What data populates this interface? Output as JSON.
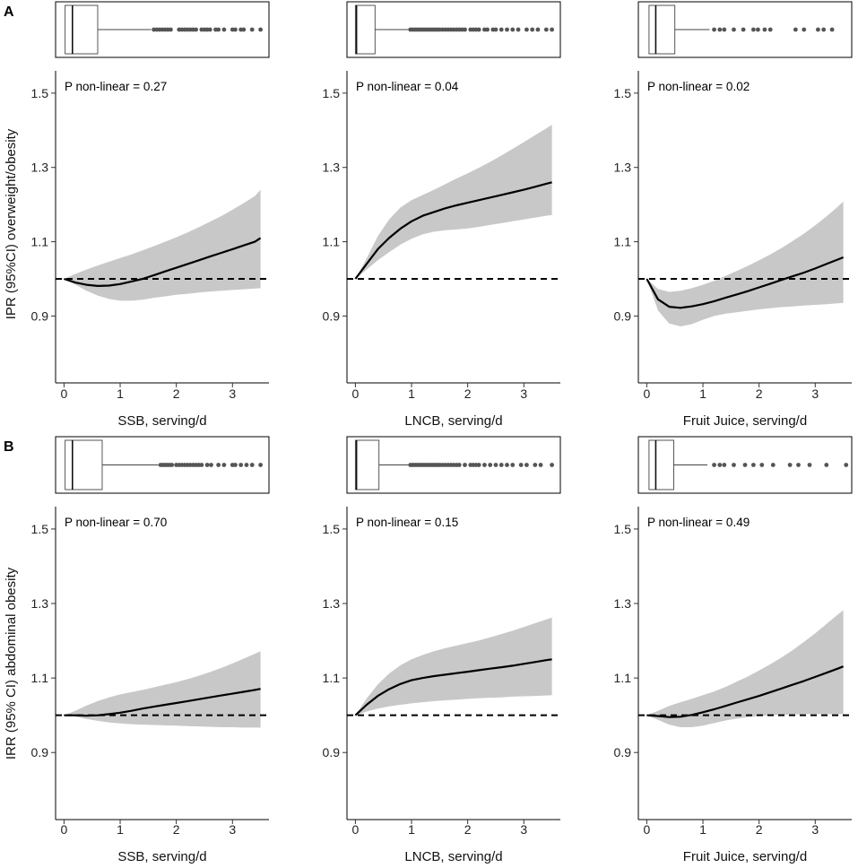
{
  "panels": [
    {
      "letter": "A",
      "ylabel": "IPR (95%CI) overweight/obesity",
      "yticks": [
        0.9,
        1.1,
        1.3,
        1.5
      ],
      "ylim": [
        0.72,
        1.56
      ],
      "subplots": [
        {
          "xlabel": "SSB, serving/d",
          "annotation": "P non-linear = 0.27",
          "box": {
            "whisker_low": 0.0,
            "q1": 0.02,
            "median": 0.15,
            "q3": 0.6,
            "whisker_high": 1.55,
            "outliers": [
              1.6,
              1.65,
              1.7,
              1.75,
              1.8,
              1.85,
              1.9,
              2.05,
              2.1,
              2.15,
              2.2,
              2.25,
              2.3,
              2.35,
              2.45,
              2.5,
              2.55,
              2.6,
              2.7,
              2.75,
              2.85,
              3.0,
              3.05,
              3.15,
              3.2,
              3.35,
              3.5
            ]
          },
          "curve": {
            "x": [
              0,
              0.2,
              0.4,
              0.6,
              0.8,
              1.0,
              1.2,
              1.4,
              1.6,
              1.8,
              2.0,
              2.2,
              2.4,
              2.6,
              2.8,
              3.0,
              3.2,
              3.4,
              3.5
            ],
            "y": [
              1.0,
              0.99,
              0.984,
              0.981,
              0.982,
              0.986,
              0.993,
              1.0,
              1.01,
              1.02,
              1.03,
              1.04,
              1.05,
              1.06,
              1.07,
              1.08,
              1.09,
              1.1,
              1.11
            ],
            "lower": [
              1.0,
              0.985,
              0.968,
              0.955,
              0.946,
              0.941,
              0.941,
              0.944,
              0.949,
              0.953,
              0.957,
              0.96,
              0.963,
              0.966,
              0.968,
              0.97,
              0.972,
              0.974,
              0.975
            ],
            "upper": [
              1.0,
              1.013,
              1.025,
              1.036,
              1.046,
              1.056,
              1.066,
              1.077,
              1.088,
              1.1,
              1.112,
              1.125,
              1.139,
              1.154,
              1.169,
              1.186,
              1.204,
              1.223,
              1.24
            ]
          }
        },
        {
          "xlabel": "LNCB, serving/d",
          "annotation": "P non-linear = 0.04",
          "box": {
            "whisker_low": 0.0,
            "q1": 0.0,
            "median": 0.02,
            "q3": 0.35,
            "whisker_high": 0.95,
            "outliers": [
              0.98,
              1.02,
              1.06,
              1.1,
              1.14,
              1.18,
              1.22,
              1.26,
              1.3,
              1.34,
              1.38,
              1.42,
              1.46,
              1.5,
              1.55,
              1.6,
              1.65,
              1.7,
              1.75,
              1.8,
              1.85,
              1.9,
              1.95,
              2.05,
              2.1,
              2.15,
              2.2,
              2.3,
              2.35,
              2.45,
              2.5,
              2.6,
              2.7,
              2.8,
              2.9,
              3.05,
              3.15,
              3.25,
              3.4,
              3.5
            ]
          },
          "curve": {
            "x": [
              0,
              0.2,
              0.4,
              0.6,
              0.8,
              1.0,
              1.2,
              1.4,
              1.6,
              1.8,
              2.0,
              2.2,
              2.4,
              2.6,
              2.8,
              3.0,
              3.2,
              3.4,
              3.5
            ],
            "y": [
              1.0,
              1.04,
              1.08,
              1.11,
              1.135,
              1.155,
              1.17,
              1.18,
              1.19,
              1.198,
              1.205,
              1.212,
              1.219,
              1.226,
              1.233,
              1.24,
              1.248,
              1.256,
              1.26
            ],
            "lower": [
              1.0,
              1.025,
              1.05,
              1.072,
              1.092,
              1.108,
              1.12,
              1.127,
              1.131,
              1.133,
              1.136,
              1.14,
              1.145,
              1.15,
              1.155,
              1.16,
              1.165,
              1.17,
              1.172
            ],
            "upper": [
              1.0,
              1.055,
              1.115,
              1.16,
              1.192,
              1.212,
              1.226,
              1.24,
              1.255,
              1.27,
              1.284,
              1.299,
              1.315,
              1.332,
              1.35,
              1.368,
              1.387,
              1.405,
              1.415
            ]
          }
        },
        {
          "xlabel": "Fruit Juice, serving/d",
          "annotation": "P non-linear = 0.02",
          "box": {
            "whisker_low": 0.0,
            "q1": 0.04,
            "median": 0.16,
            "q3": 0.5,
            "whisker_high": 1.12,
            "outliers": [
              1.2,
              1.3,
              1.38,
              1.55,
              1.72,
              1.9,
              1.98,
              2.1,
              2.2,
              2.65,
              2.8,
              3.05,
              3.15,
              3.3
            ]
          },
          "curve": {
            "x": [
              0,
              0.2,
              0.4,
              0.6,
              0.8,
              1.0,
              1.2,
              1.4,
              1.6,
              1.8,
              2.0,
              2.2,
              2.4,
              2.6,
              2.8,
              3.0,
              3.2,
              3.4,
              3.5
            ],
            "y": [
              1.0,
              0.945,
              0.925,
              0.922,
              0.926,
              0.932,
              0.94,
              0.949,
              0.958,
              0.967,
              0.977,
              0.987,
              0.997,
              1.007,
              1.017,
              1.028,
              1.04,
              1.052,
              1.058
            ],
            "lower": [
              1.0,
              0.915,
              0.88,
              0.872,
              0.878,
              0.89,
              0.9,
              0.906,
              0.91,
              0.914,
              0.918,
              0.921,
              0.924,
              0.926,
              0.928,
              0.93,
              0.932,
              0.934,
              0.935
            ],
            "upper": [
              1.0,
              0.973,
              0.965,
              0.968,
              0.975,
              0.984,
              0.995,
              1.008,
              1.021,
              1.035,
              1.05,
              1.066,
              1.083,
              1.102,
              1.122,
              1.144,
              1.168,
              1.194,
              1.208
            ]
          }
        }
      ]
    },
    {
      "letter": "B",
      "ylabel": "IRR (95% CI) abdominal obesity",
      "yticks": [
        0.9,
        1.1,
        1.3,
        1.5
      ],
      "ylim": [
        0.72,
        1.56
      ],
      "subplots": [
        {
          "xlabel": "SSB, serving/d",
          "annotation": "P non-linear = 0.70",
          "box": {
            "whisker_low": 0.0,
            "q1": 0.02,
            "median": 0.15,
            "q3": 0.68,
            "whisker_high": 1.68,
            "outliers": [
              1.72,
              1.76,
              1.8,
              1.84,
              1.88,
              1.92,
              2.0,
              2.05,
              2.1,
              2.15,
              2.2,
              2.25,
              2.3,
              2.35,
              2.4,
              2.45,
              2.55,
              2.62,
              2.75,
              2.85,
              3.0,
              3.05,
              3.15,
              3.25,
              3.35,
              3.5
            ]
          },
          "curve": {
            "x": [
              0,
              0.2,
              0.4,
              0.6,
              0.8,
              1.0,
              1.2,
              1.4,
              1.6,
              1.8,
              2.0,
              2.2,
              2.4,
              2.6,
              2.8,
              3.0,
              3.2,
              3.4,
              3.5
            ],
            "y": [
              1.0,
              1.0,
              0.999,
              1.0,
              1.003,
              1.007,
              1.012,
              1.018,
              1.023,
              1.028,
              1.033,
              1.038,
              1.043,
              1.048,
              1.053,
              1.058,
              1.063,
              1.068,
              1.071
            ],
            "lower": [
              1.0,
              0.996,
              0.99,
              0.985,
              0.981,
              0.978,
              0.976,
              0.975,
              0.974,
              0.973,
              0.972,
              0.971,
              0.97,
              0.969,
              0.968,
              0.968,
              0.967,
              0.967,
              0.967
            ],
            "upper": [
              1.0,
              1.012,
              1.026,
              1.038,
              1.048,
              1.056,
              1.062,
              1.068,
              1.075,
              1.082,
              1.089,
              1.097,
              1.106,
              1.116,
              1.127,
              1.139,
              1.152,
              1.165,
              1.172
            ]
          }
        },
        {
          "xlabel": "LNCB, serving/d",
          "annotation": "P non-linear = 0.15",
          "box": {
            "whisker_low": 0.0,
            "q1": 0.0,
            "median": 0.02,
            "q3": 0.42,
            "whisker_high": 0.95,
            "outliers": [
              0.98,
              1.02,
              1.06,
              1.1,
              1.14,
              1.18,
              1.22,
              1.26,
              1.3,
              1.34,
              1.38,
              1.42,
              1.46,
              1.5,
              1.55,
              1.6,
              1.65,
              1.7,
              1.75,
              1.8,
              1.85,
              1.95,
              2.05,
              2.1,
              2.15,
              2.2,
              2.3,
              2.4,
              2.5,
              2.6,
              2.7,
              2.8,
              2.95,
              3.05,
              3.2,
              3.3,
              3.5
            ]
          },
          "curve": {
            "x": [
              0,
              0.2,
              0.4,
              0.6,
              0.8,
              1.0,
              1.2,
              1.4,
              1.6,
              1.8,
              2.0,
              2.2,
              2.4,
              2.6,
              2.8,
              3.0,
              3.2,
              3.4,
              3.5
            ],
            "y": [
              1.0,
              1.028,
              1.052,
              1.07,
              1.084,
              1.094,
              1.1,
              1.105,
              1.109,
              1.113,
              1.117,
              1.121,
              1.125,
              1.129,
              1.133,
              1.138,
              1.143,
              1.148,
              1.15
            ],
            "lower": [
              1.0,
              1.01,
              1.018,
              1.024,
              1.028,
              1.032,
              1.035,
              1.038,
              1.04,
              1.042,
              1.044,
              1.046,
              1.047,
              1.048,
              1.05,
              1.051,
              1.052,
              1.053,
              1.054
            ],
            "upper": [
              1.0,
              1.045,
              1.083,
              1.112,
              1.134,
              1.15,
              1.162,
              1.172,
              1.18,
              1.187,
              1.194,
              1.201,
              1.209,
              1.218,
              1.227,
              1.237,
              1.247,
              1.257,
              1.262
            ]
          }
        },
        {
          "xlabel": "Fruit Juice, serving/d",
          "annotation": "P non-linear = 0.49",
          "box": {
            "whisker_low": 0.0,
            "q1": 0.04,
            "median": 0.16,
            "q3": 0.48,
            "whisker_high": 1.08,
            "outliers": [
              1.2,
              1.3,
              1.38,
              1.55,
              1.75,
              1.9,
              2.05,
              2.25,
              2.55,
              2.7,
              2.9,
              3.2,
              3.55
            ]
          },
          "curve": {
            "x": [
              0,
              0.2,
              0.4,
              0.6,
              0.8,
              1.0,
              1.2,
              1.4,
              1.6,
              1.8,
              2.0,
              2.2,
              2.4,
              2.6,
              2.8,
              3.0,
              3.2,
              3.4,
              3.5
            ],
            "y": [
              1.0,
              0.998,
              0.995,
              0.996,
              1.001,
              1.008,
              1.016,
              1.025,
              1.034,
              1.043,
              1.052,
              1.062,
              1.072,
              1.082,
              1.092,
              1.103,
              1.114,
              1.125,
              1.131
            ],
            "lower": [
              1.0,
              0.988,
              0.975,
              0.968,
              0.968,
              0.972,
              0.979,
              0.986,
              0.991,
              0.995,
              0.998,
              1.0,
              1.001,
              1.002,
              1.003,
              1.003,
              1.003,
              1.003,
              1.003
            ],
            "upper": [
              1.0,
              1.012,
              1.025,
              1.035,
              1.044,
              1.054,
              1.064,
              1.076,
              1.09,
              1.104,
              1.12,
              1.137,
              1.155,
              1.175,
              1.197,
              1.22,
              1.245,
              1.27,
              1.282
            ]
          }
        }
      ]
    }
  ],
  "xticks": [
    0,
    1,
    2,
    3
  ],
  "xlim": [
    -0.15,
    3.65
  ],
  "reference_y": 1.0,
  "colors": {
    "band": "#c8c8c8",
    "line": "#000000",
    "dot": "#555555",
    "frame": "#000000"
  },
  "chart_data": [
    {
      "type": "line",
      "title": "A",
      "subplot": "SSB",
      "xlabel": "SSB, serving/d",
      "ylabel": "IPR (95%CI) overweight/obesity",
      "annotation": "P non-linear = 0.27",
      "ylim": [
        0.72,
        1.56
      ]
    },
    {
      "type": "line",
      "title": "A",
      "subplot": "LNCB",
      "xlabel": "LNCB, serving/d",
      "annotation": "P non-linear = 0.04",
      "ylim": [
        0.72,
        1.56
      ]
    },
    {
      "type": "line",
      "title": "A",
      "subplot": "Fruit Juice",
      "xlabel": "Fruit Juice, serving/d",
      "annotation": "P non-linear = 0.02",
      "ylim": [
        0.72,
        1.56
      ]
    },
    {
      "type": "line",
      "title": "B",
      "subplot": "SSB",
      "xlabel": "SSB, serving/d",
      "ylabel": "IRR (95% CI) abdominal obesity",
      "annotation": "P non-linear = 0.70",
      "ylim": [
        0.72,
        1.56
      ]
    },
    {
      "type": "line",
      "title": "B",
      "subplot": "LNCB",
      "xlabel": "LNCB, serving/d",
      "annotation": "P non-linear = 0.15",
      "ylim": [
        0.72,
        1.56
      ]
    },
    {
      "type": "line",
      "title": "B",
      "subplot": "Fruit Juice",
      "xlabel": "Fruit Juice, serving/d",
      "annotation": "P non-linear = 0.49",
      "ylim": [
        0.72,
        1.56
      ]
    }
  ]
}
